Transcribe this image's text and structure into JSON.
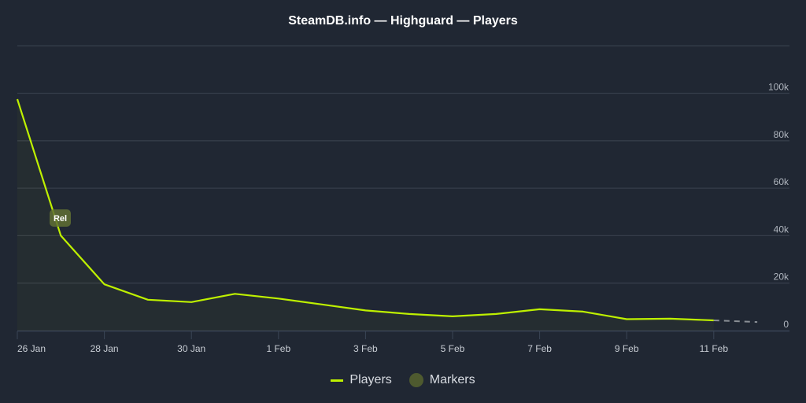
{
  "title": "SteamDB.info — Highguard — Players",
  "legend": [
    {
      "label": "Players",
      "color": "#bef000"
    },
    {
      "label": "Markers",
      "color": "#4e5a2f"
    }
  ],
  "marker": {
    "label": "Rel",
    "date": "27 Jan"
  },
  "chart_data": {
    "type": "line",
    "title": "SteamDB.info — Highguard — Players",
    "xlabel": "",
    "ylabel": "",
    "ylim": [
      0,
      120000
    ],
    "y_ticks": [
      "0",
      "20k",
      "40k",
      "60k",
      "80k",
      "100k"
    ],
    "x_ticks": [
      "26 Jan",
      "28 Jan",
      "30 Jan",
      "1 Feb",
      "3 Feb",
      "5 Feb",
      "7 Feb",
      "9 Feb",
      "11 Feb"
    ],
    "grid": true,
    "legend_position": "bottom",
    "x": [
      "26 Jan",
      "27 Jan",
      "28 Jan",
      "29 Jan",
      "30 Jan",
      "31 Jan",
      "1 Feb",
      "2 Feb",
      "3 Feb",
      "4 Feb",
      "5 Feb",
      "6 Feb",
      "7 Feb",
      "8 Feb",
      "9 Feb",
      "10 Feb",
      "11 Feb",
      "12 Feb"
    ],
    "series": [
      {
        "name": "Players",
        "color": "#bef000",
        "values": [
          97500,
          40000,
          19500,
          13000,
          12000,
          15500,
          13500,
          11000,
          8500,
          7000,
          6000,
          7000,
          9000,
          8000,
          4800,
          5000,
          4300,
          3600
        ],
        "note": "last segment (11 Feb → 12 Feb) dashed, incomplete"
      }
    ],
    "annotations": [
      {
        "label": "Rel",
        "x": "27 Jan",
        "type": "marker"
      }
    ]
  }
}
